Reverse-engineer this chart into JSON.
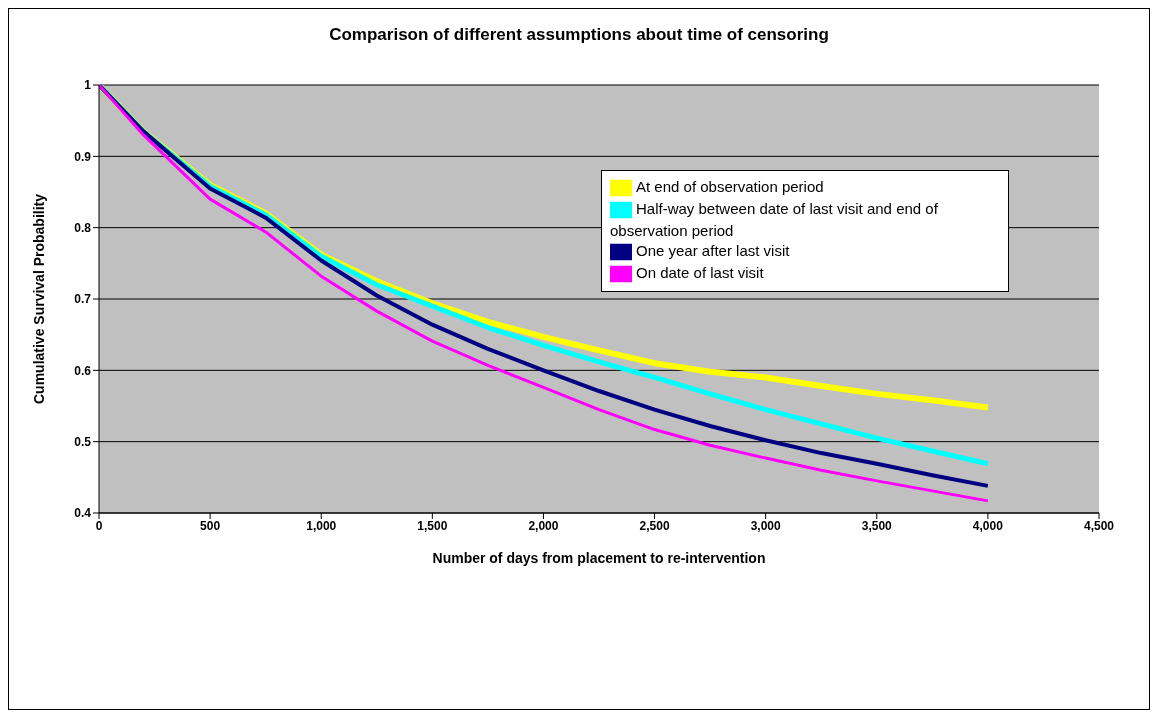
{
  "chart_data": {
    "type": "line",
    "title": "Comparison of different assumptions about time of censoring",
    "xlabel": "Number of days from placement to re-intervention",
    "ylabel": "Cumulative Survival Probability",
    "xlim": [
      0,
      4500
    ],
    "xticks": [
      {
        "value": 0,
        "label": "0"
      },
      {
        "value": 500,
        "label": "500"
      },
      {
        "value": 1000,
        "label": "1,000"
      },
      {
        "value": 1500,
        "label": "1,500"
      },
      {
        "value": 2000,
        "label": "2,000"
      },
      {
        "value": 2500,
        "label": "2,500"
      },
      {
        "value": 3000,
        "label": "3,000"
      },
      {
        "value": 3500,
        "label": "3,500"
      },
      {
        "value": 4000,
        "label": "4,000"
      },
      {
        "value": 4500,
        "label": "4,500"
      }
    ],
    "ylim": [
      0.4,
      1.0
    ],
    "yticks": [
      0.4,
      0.5,
      0.6,
      0.7,
      0.8,
      0.9,
      1.0
    ],
    "grid": "y",
    "legend": "top right",
    "marker": "none",
    "line_style": "solid",
    "series": [
      {
        "name": "At end of observation period",
        "color": "#ffff00",
        "x": [
          0,
          200,
          500,
          750,
          1000,
          1250,
          1500,
          1750,
          2000,
          2250,
          2500,
          2750,
          3000,
          3250,
          3500,
          3750,
          4000
        ],
        "values": [
          1.0,
          0.935,
          0.86,
          0.82,
          0.762,
          0.725,
          0.694,
          0.668,
          0.647,
          0.628,
          0.61,
          0.598,
          0.59,
          0.578,
          0.567,
          0.558,
          0.548
        ]
      },
      {
        "name": "Half-way between date of last visit and end of observation period",
        "color": "#00ffff",
        "x": [
          0,
          200,
          500,
          750,
          1000,
          1250,
          1500,
          1750,
          2000,
          2250,
          2500,
          2750,
          3000,
          3250,
          3500,
          3750,
          4000
        ],
        "values": [
          1.0,
          0.935,
          0.858,
          0.818,
          0.76,
          0.72,
          0.69,
          0.66,
          0.635,
          0.612,
          0.59,
          0.567,
          0.545,
          0.525,
          0.505,
          0.487,
          0.469
        ]
      },
      {
        "name": "One year after last visit",
        "color": "#000080",
        "x": [
          0,
          200,
          500,
          750,
          1000,
          1250,
          1500,
          1750,
          2000,
          2250,
          2500,
          2750,
          3000,
          3250,
          3500,
          3750,
          4000
        ],
        "values": [
          1.0,
          0.935,
          0.855,
          0.814,
          0.754,
          0.705,
          0.664,
          0.63,
          0.6,
          0.571,
          0.545,
          0.522,
          0.502,
          0.484,
          0.469,
          0.453,
          0.438
        ]
      },
      {
        "name": "On date of last visit",
        "color": "#ff00ff",
        "x": [
          0,
          200,
          500,
          750,
          1000,
          1250,
          1500,
          1750,
          2000,
          2250,
          2500,
          2750,
          3000,
          3250,
          3500,
          3750,
          4000
        ],
        "values": [
          1.0,
          0.93,
          0.84,
          0.794,
          0.732,
          0.683,
          0.641,
          0.607,
          0.576,
          0.545,
          0.517,
          0.495,
          0.477,
          0.46,
          0.445,
          0.431,
          0.417
        ]
      }
    ]
  }
}
